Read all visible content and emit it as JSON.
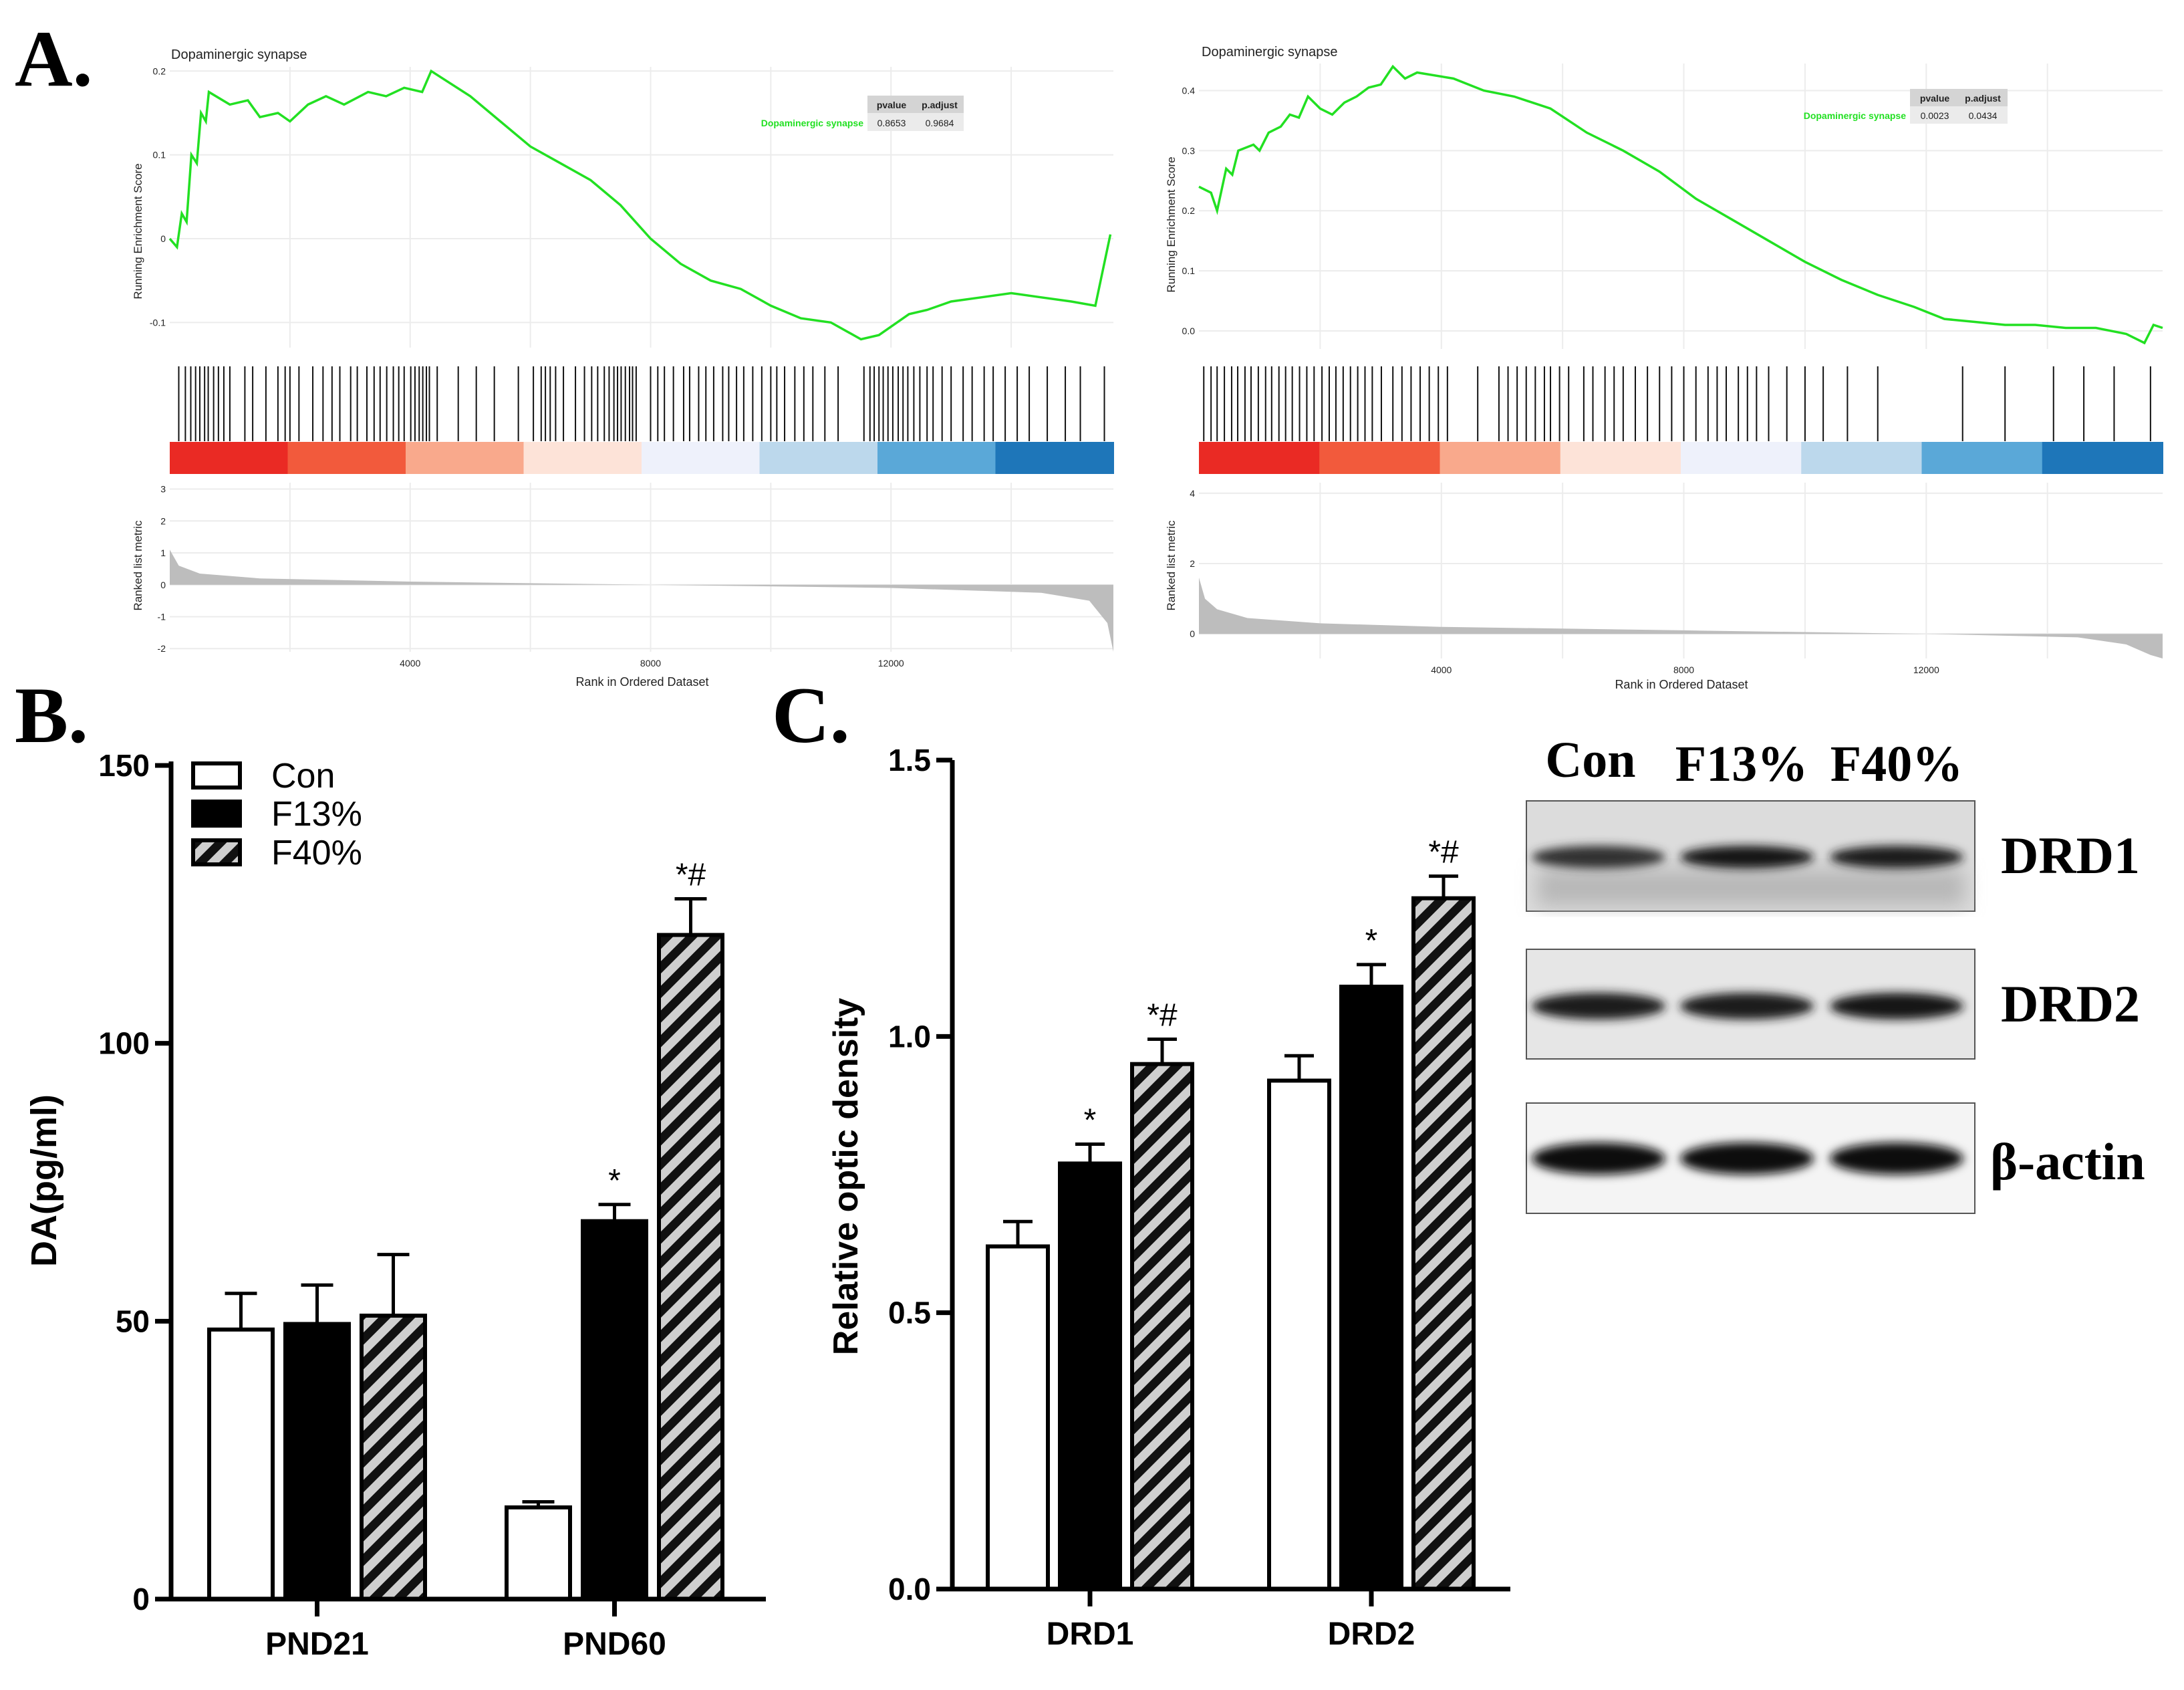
{
  "panels": {
    "a": {
      "letter": "A."
    },
    "b": {
      "letter": "B."
    },
    "c": {
      "letter": "C."
    }
  },
  "colors": {
    "gsea_line": "#22e022",
    "hit_bar": "#111111",
    "metric_fill": "#bdbdbd",
    "gradient_red": "#ee2222",
    "gradient_blue": "#1d6fb4",
    "bar_con": "#ffffff",
    "bar_f13": "#000000",
    "bar_f40_stripe": "#cfcfcf"
  },
  "chart_data": [
    {
      "id": "gsea_left",
      "type": "line",
      "title": "Dopaminergic synapse",
      "ylabel": "Running Enrichment Score",
      "ylabel_bottom": "Ranked list metric",
      "xlabel": "Rank in Ordered Dataset",
      "x_ticks": [
        "4000",
        "8000",
        "12000"
      ],
      "x_tick_values": [
        4000,
        8000,
        12000
      ],
      "xlim": [
        0,
        15700
      ],
      "y_ticks": [
        "0.2",
        "0.1",
        "0",
        "-0.1"
      ],
      "y_tick_values": [
        0.2,
        0.1,
        0,
        -0.1
      ],
      "ylim": [
        -0.13,
        0.205
      ],
      "metric_ticks": [
        "3",
        "2",
        "1",
        "0",
        "-1",
        "-2"
      ],
      "metric_tick_values": [
        3,
        2,
        1,
        0,
        -1,
        -2
      ],
      "metric_lim": [
        -2.1,
        3.2
      ],
      "metric_curve": [
        [
          0,
          1.1
        ],
        [
          150,
          0.6
        ],
        [
          500,
          0.35
        ],
        [
          1500,
          0.2
        ],
        [
          4000,
          0.1
        ],
        [
          8000,
          0.0
        ],
        [
          12000,
          -0.1
        ],
        [
          14500,
          -0.25
        ],
        [
          15300,
          -0.5
        ],
        [
          15600,
          -1.2
        ],
        [
          15700,
          -2.1
        ]
      ],
      "es_curve": [
        [
          0,
          0.0
        ],
        [
          120,
          -0.01
        ],
        [
          200,
          0.03
        ],
        [
          280,
          0.02
        ],
        [
          360,
          0.1
        ],
        [
          450,
          0.09
        ],
        [
          520,
          0.15
        ],
        [
          600,
          0.14
        ],
        [
          650,
          0.175
        ],
        [
          1000,
          0.16
        ],
        [
          1300,
          0.165
        ],
        [
          1500,
          0.145
        ],
        [
          1800,
          0.15
        ],
        [
          2000,
          0.14
        ],
        [
          2300,
          0.16
        ],
        [
          2600,
          0.17
        ],
        [
          2900,
          0.16
        ],
        [
          3300,
          0.175
        ],
        [
          3600,
          0.17
        ],
        [
          3900,
          0.18
        ],
        [
          4200,
          0.175
        ],
        [
          4350,
          0.2
        ],
        [
          5000,
          0.17
        ],
        [
          5500,
          0.14
        ],
        [
          6000,
          0.11
        ],
        [
          6500,
          0.09
        ],
        [
          7000,
          0.07
        ],
        [
          7500,
          0.04
        ],
        [
          8000,
          0.0
        ],
        [
          8500,
          -0.03
        ],
        [
          9000,
          -0.05
        ],
        [
          9500,
          -0.06
        ],
        [
          10000,
          -0.08
        ],
        [
          10500,
          -0.095
        ],
        [
          11000,
          -0.1
        ],
        [
          11500,
          -0.12
        ],
        [
          11800,
          -0.115
        ],
        [
          12100,
          -0.1
        ],
        [
          12300,
          -0.09
        ],
        [
          12600,
          -0.085
        ],
        [
          13000,
          -0.075
        ],
        [
          13500,
          -0.07
        ],
        [
          14000,
          -0.065
        ],
        [
          14500,
          -0.07
        ],
        [
          15000,
          -0.075
        ],
        [
          15400,
          -0.08
        ],
        [
          15650,
          0.005
        ]
      ],
      "hits": [
        150,
        260,
        350,
        430,
        500,
        580,
        640,
        730,
        810,
        900,
        1000,
        1250,
        1380,
        1600,
        1800,
        1920,
        2000,
        2150,
        2380,
        2550,
        2700,
        2830,
        3010,
        3120,
        3280,
        3400,
        3500,
        3610,
        3720,
        3810,
        3900,
        4010,
        4080,
        4150,
        4210,
        4270,
        4320,
        4450,
        4800,
        5100,
        5400,
        5800,
        6050,
        6180,
        6250,
        6330,
        6420,
        6550,
        6750,
        6900,
        7020,
        7120,
        7230,
        7310,
        7390,
        7450,
        7510,
        7580,
        7650,
        7700,
        7760,
        8000,
        8120,
        8230,
        8380,
        8550,
        8650,
        8800,
        8920,
        9050,
        9200,
        9300,
        9430,
        9550,
        9700,
        9850,
        10000,
        10100,
        10230,
        10400,
        10550,
        10700,
        10900,
        11120,
        11550,
        11650,
        11720,
        11800,
        11870,
        11950,
        12030,
        12120,
        12200,
        12280,
        12380,
        12480,
        12600,
        12700,
        12850,
        13000,
        13200,
        13350,
        13550,
        13700,
        13900,
        14100,
        14300,
        14600,
        14900,
        15150,
        15550
      ],
      "table": {
        "headers": [
          "pvalue",
          "p.adjust"
        ],
        "row_label": "Dopaminergic synapse",
        "values": [
          "0.8653",
          "0.9684"
        ]
      }
    },
    {
      "id": "gsea_right",
      "type": "line",
      "title": "Dopaminergic synapse",
      "ylabel": "Running Enrichment Score",
      "ylabel_bottom": "Ranked list metric",
      "xlabel": "Rank in Ordered Dataset",
      "x_ticks": [
        "4000",
        "8000",
        "12000"
      ],
      "x_tick_values": [
        4000,
        8000,
        12000
      ],
      "xlim": [
        0,
        15900
      ],
      "y_ticks": [
        "0.4",
        "0.3",
        "0.2",
        "0.1",
        "0.0"
      ],
      "y_tick_values": [
        0.4,
        0.3,
        0.2,
        0.1,
        0.0
      ],
      "ylim": [
        -0.03,
        0.445
      ],
      "metric_ticks": [
        "4",
        "2",
        "0"
      ],
      "metric_tick_values": [
        4,
        2,
        0
      ],
      "metric_lim": [
        -0.7,
        4.3
      ],
      "metric_curve": [
        [
          0,
          1.6
        ],
        [
          100,
          1.0
        ],
        [
          300,
          0.7
        ],
        [
          800,
          0.45
        ],
        [
          2000,
          0.3
        ],
        [
          4000,
          0.2
        ],
        [
          8000,
          0.1
        ],
        [
          12000,
          0.0
        ],
        [
          14500,
          -0.1
        ],
        [
          15300,
          -0.3
        ],
        [
          15700,
          -0.6
        ],
        [
          15900,
          -0.7
        ]
      ],
      "es_curve": [
        [
          0,
          0.24
        ],
        [
          200,
          0.23
        ],
        [
          300,
          0.2
        ],
        [
          450,
          0.27
        ],
        [
          550,
          0.26
        ],
        [
          650,
          0.3
        ],
        [
          900,
          0.31
        ],
        [
          1000,
          0.3
        ],
        [
          1150,
          0.33
        ],
        [
          1350,
          0.34
        ],
        [
          1500,
          0.36
        ],
        [
          1650,
          0.355
        ],
        [
          1800,
          0.39
        ],
        [
          2000,
          0.37
        ],
        [
          2200,
          0.36
        ],
        [
          2400,
          0.38
        ],
        [
          2600,
          0.39
        ],
        [
          2800,
          0.405
        ],
        [
          3000,
          0.41
        ],
        [
          3200,
          0.44
        ],
        [
          3400,
          0.42
        ],
        [
          3600,
          0.43
        ],
        [
          4200,
          0.42
        ],
        [
          4700,
          0.4
        ],
        [
          5200,
          0.39
        ],
        [
          5800,
          0.37
        ],
        [
          6400,
          0.33
        ],
        [
          7000,
          0.3
        ],
        [
          7600,
          0.265
        ],
        [
          8200,
          0.22
        ],
        [
          8800,
          0.185
        ],
        [
          9400,
          0.15
        ],
        [
          10000,
          0.115
        ],
        [
          10600,
          0.085
        ],
        [
          11200,
          0.06
        ],
        [
          11800,
          0.04
        ],
        [
          12300,
          0.02
        ],
        [
          12800,
          0.015
        ],
        [
          13300,
          0.01
        ],
        [
          13800,
          0.01
        ],
        [
          14300,
          0.005
        ],
        [
          14800,
          0.005
        ],
        [
          15300,
          -0.005
        ],
        [
          15600,
          -0.02
        ],
        [
          15750,
          0.01
        ],
        [
          15900,
          0.005
        ]
      ],
      "hits": [
        80,
        200,
        300,
        420,
        540,
        640,
        760,
        860,
        980,
        1100,
        1200,
        1320,
        1430,
        1540,
        1660,
        1780,
        1900,
        2030,
        2150,
        2260,
        2380,
        2500,
        2620,
        2740,
        2860,
        3010,
        3200,
        3350,
        3500,
        3650,
        3800,
        3950,
        4100,
        4600,
        4950,
        5100,
        5250,
        5400,
        5550,
        5700,
        5800,
        5950,
        6100,
        6350,
        6500,
        6700,
        6850,
        7000,
        7200,
        7400,
        7600,
        7800,
        8000,
        8200,
        8400,
        8550,
        8700,
        8900,
        9050,
        9200,
        9400,
        9700,
        10000,
        10300,
        10700,
        11200,
        12600,
        13300,
        14100,
        14600,
        15100,
        15700
      ],
      "table": {
        "headers": [
          "pvalue",
          "p.adjust"
        ],
        "row_label": "Dopaminergic synapse",
        "values": [
          "0.0023",
          "0.0434"
        ]
      }
    },
    {
      "id": "bar_b",
      "type": "bar",
      "categories": [
        "PND21",
        "PND60"
      ],
      "series": [
        {
          "name": "Con",
          "values": [
            48.5,
            16.5
          ],
          "errors": [
            6.5,
            1.0
          ],
          "annot": [
            "",
            ""
          ]
        },
        {
          "name": "F13%",
          "values": [
            49.5,
            68.0
          ],
          "errors": [
            7.0,
            3.0
          ],
          "annot": [
            "",
            "*"
          ]
        },
        {
          "name": "F40%",
          "values": [
            51.0,
            119.5
          ],
          "errors": [
            11.0,
            6.5
          ],
          "annot": [
            "",
            "*#"
          ]
        }
      ],
      "ylabel": "DA(pg/ml)",
      "ylim": [
        0,
        150
      ],
      "y_ticks": [
        "0",
        "50",
        "100",
        "150"
      ],
      "y_tick_values": [
        0,
        50,
        100,
        150
      ],
      "legend": [
        "Con",
        "F13%",
        "F40%"
      ]
    },
    {
      "id": "bar_c",
      "type": "bar",
      "categories": [
        "DRD1",
        "DRD2"
      ],
      "series": [
        {
          "name": "Con",
          "values": [
            0.62,
            0.92
          ],
          "errors": [
            0.045,
            0.045
          ],
          "annot": [
            "",
            ""
          ]
        },
        {
          "name": "F13%",
          "values": [
            0.77,
            1.09
          ],
          "errors": [
            0.035,
            0.04
          ],
          "annot": [
            "*",
            "*"
          ]
        },
        {
          "name": "F40%",
          "values": [
            0.95,
            1.25
          ],
          "errors": [
            0.045,
            0.04
          ],
          "annot": [
            "*#",
            "*#"
          ]
        }
      ],
      "ylabel": "Relative optic density",
      "ylim": [
        0,
        1.5
      ],
      "y_ticks": [
        "0.0",
        "0.5",
        "1.0",
        "1.5"
      ],
      "y_tick_values": [
        0,
        0.5,
        1.0,
        1.5
      ]
    }
  ],
  "blot": {
    "lane_labels": [
      "Con",
      "F13%",
      "F40%"
    ],
    "rows": [
      {
        "label": "DRD1",
        "intensity": [
          0.62,
          0.85,
          0.8
        ]
      },
      {
        "label": "DRD2",
        "intensity": [
          0.8,
          0.82,
          0.85
        ]
      },
      {
        "label": "β-actin",
        "intensity": [
          0.95,
          0.95,
          0.95
        ]
      }
    ]
  }
}
